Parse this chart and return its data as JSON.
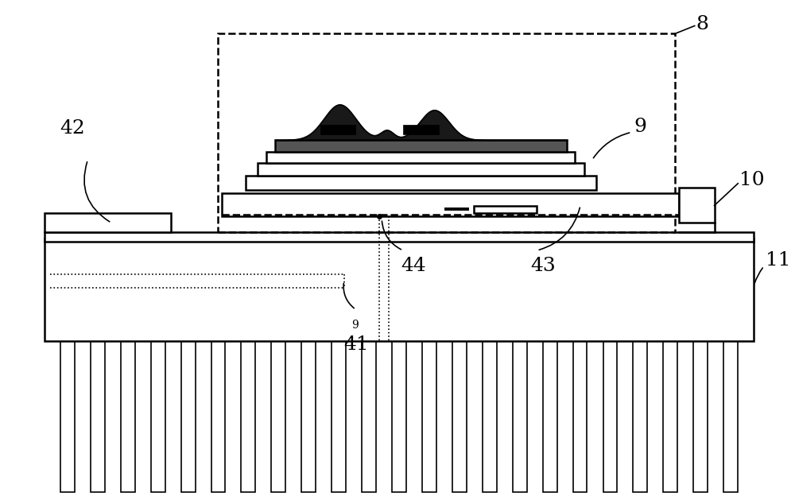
{
  "fig_width": 10.0,
  "fig_height": 6.34,
  "dpi": 100,
  "bg_color": "#ffffff",
  "line_color": "#000000"
}
